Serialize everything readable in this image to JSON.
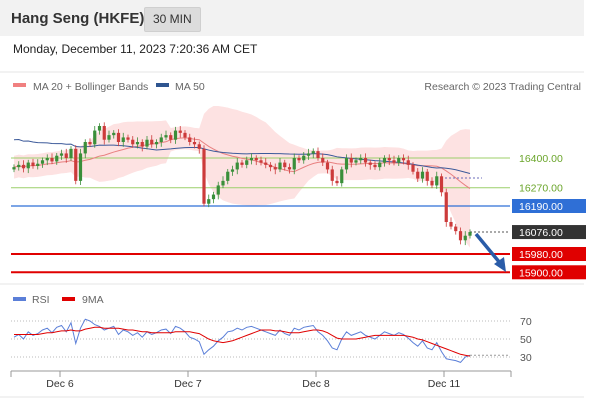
{
  "header": {
    "instrument": "Hang Seng (HKFE)",
    "timeframe": "30 MIN",
    "timestamp": "Monday, December 11, 2023 7:20:36 AM CET"
  },
  "colors": {
    "bull": "#3a8f3a",
    "bear": "#cc3b3b",
    "bollinger_fill": "#fde2e2",
    "ma20": "#e88080",
    "ma50": "#3c5a9a",
    "support": "#e00000",
    "pivot": "#2f6fd6",
    "resistance": "#9ccf6a",
    "current": "#333333",
    "rsi": "#5b7fd8",
    "rsi_ma": "#e00000"
  },
  "chart_data": [
    {
      "type": "candlestick",
      "legend": [
        {
          "label": "MA 20 + Bollinger Bands",
          "color": "#f08080"
        },
        {
          "label": "MA 50",
          "color": "#2f5590"
        }
      ],
      "credit": "Research © 2023 Trading Central",
      "ylim": [
        15900,
        16500
      ],
      "x_labels": [
        "Dec 6",
        "Dec 7",
        "Dec 8",
        "Dec 11"
      ],
      "levels": [
        {
          "value": 16400.0,
          "label": "16400.00",
          "kind": "resistance"
        },
        {
          "value": 16270.0,
          "label": "16270.00",
          "kind": "resistance"
        },
        {
          "value": 16190.0,
          "label": "16190.00",
          "kind": "pivot"
        },
        {
          "value": 16076.0,
          "label": "16076.00",
          "kind": "current"
        },
        {
          "value": 15980.0,
          "label": "15980.00",
          "kind": "support"
        },
        {
          "value": 15900.0,
          "label": "15900.00",
          "kind": "support"
        }
      ],
      "series_close": [
        16360,
        16370,
        16355,
        16380,
        16365,
        16375,
        16390,
        16400,
        16385,
        16410,
        16420,
        16400,
        16440,
        16300,
        16420,
        16470,
        16460,
        16520,
        16540,
        16480,
        16500,
        16510,
        16470,
        16490,
        16480,
        16460,
        16470,
        16450,
        16480,
        16460,
        16470,
        16490,
        16500,
        16480,
        16520,
        16510,
        16490,
        16470,
        16460,
        16440,
        16200,
        16220,
        16240,
        16280,
        16300,
        16340,
        16350,
        16380,
        16370,
        16390,
        16400,
        16390,
        16380,
        16370,
        16360,
        16350,
        16380,
        16360,
        16350,
        16400,
        16390,
        16410,
        16420,
        16430,
        16400,
        16380,
        16350,
        16300,
        16290,
        16350,
        16400,
        16380,
        16390,
        16400,
        16380,
        16370,
        16360,
        16380,
        16400,
        16390,
        16380,
        16400,
        16390,
        16370,
        16340,
        16310,
        16340,
        16300,
        16280,
        16320,
        16250,
        16120,
        16100,
        16080,
        16040,
        16060,
        16076
      ]
    },
    {
      "type": "line",
      "legend": [
        {
          "label": "RSI",
          "color": "#5b7fd8"
        },
        {
          "label": "9MA",
          "color": "#e00000"
        }
      ],
      "ylim": [
        20,
        80
      ],
      "yticks": [
        30,
        50,
        70
      ],
      "rsi": [
        52,
        55,
        50,
        58,
        54,
        56,
        60,
        62,
        57,
        63,
        65,
        58,
        68,
        45,
        62,
        72,
        70,
        66,
        64,
        60,
        62,
        64,
        55,
        60,
        58,
        54,
        57,
        52,
        58,
        55,
        57,
        60,
        61,
        56,
        64,
        62,
        58,
        52,
        50,
        47,
        33,
        38,
        42,
        48,
        52,
        58,
        59,
        62,
        60,
        63,
        64,
        62,
        60,
        58,
        56,
        54,
        60,
        56,
        54,
        62,
        60,
        63,
        64,
        65,
        58,
        54,
        48,
        40,
        38,
        50,
        58,
        54,
        56,
        58,
        54,
        52,
        50,
        54,
        58,
        56,
        54,
        57,
        55,
        51,
        46,
        42,
        48,
        40,
        38,
        46,
        36,
        28,
        27,
        26,
        24,
        30,
        32
      ],
      "rsi_ma": [
        55,
        55,
        55,
        55,
        55,
        55,
        56,
        57,
        57,
        58,
        59,
        59,
        60,
        59,
        59,
        61,
        62,
        63,
        63,
        62,
        62,
        62,
        62,
        61,
        60,
        60,
        59,
        58,
        58,
        57,
        57,
        57,
        57,
        57,
        58,
        58,
        58,
        58,
        57,
        56,
        53,
        50,
        48,
        47,
        46,
        47,
        48,
        50,
        52,
        54,
        56,
        58,
        60,
        60,
        60,
        59,
        59,
        58,
        57,
        57,
        57,
        58,
        59,
        60,
        60,
        59,
        57,
        54,
        51,
        50,
        50,
        50,
        50,
        51,
        52,
        53,
        54,
        54,
        54,
        54,
        54,
        54,
        54,
        53,
        52,
        50,
        49,
        47,
        45,
        43,
        41,
        39,
        37,
        35,
        33,
        32,
        31
      ]
    }
  ]
}
